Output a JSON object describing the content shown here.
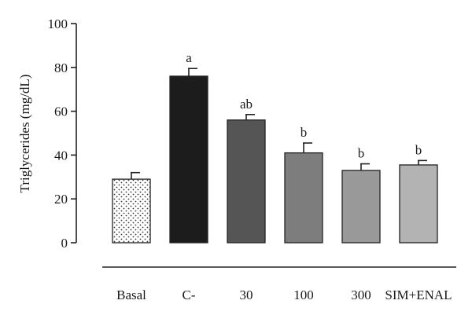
{
  "chart_data": {
    "type": "bar",
    "title": "",
    "xlabel": "",
    "ylabel": "Triglycerides (mg/dL)",
    "ylim": [
      0,
      100
    ],
    "yticks": [
      0,
      20,
      40,
      60,
      80,
      100
    ],
    "categories": [
      "Basal",
      "C-",
      "30",
      "100",
      "300",
      "SIM+ENAL"
    ],
    "values": [
      29,
      76,
      56,
      41,
      33,
      35.5
    ],
    "errors": [
      3,
      3.5,
      2.5,
      4.5,
      3,
      2
    ],
    "significance": [
      "",
      "a",
      "ab",
      "b",
      "b",
      "b"
    ],
    "bar_colors": [
      "#ffffff",
      "#1c1c1c",
      "#555555",
      "#7d7d7d",
      "#999999",
      "#b3b3b3"
    ],
    "bar_patterns": [
      "dots",
      "solid",
      "solid",
      "solid",
      "solid",
      "solid"
    ],
    "grid": false,
    "legend": "none"
  }
}
